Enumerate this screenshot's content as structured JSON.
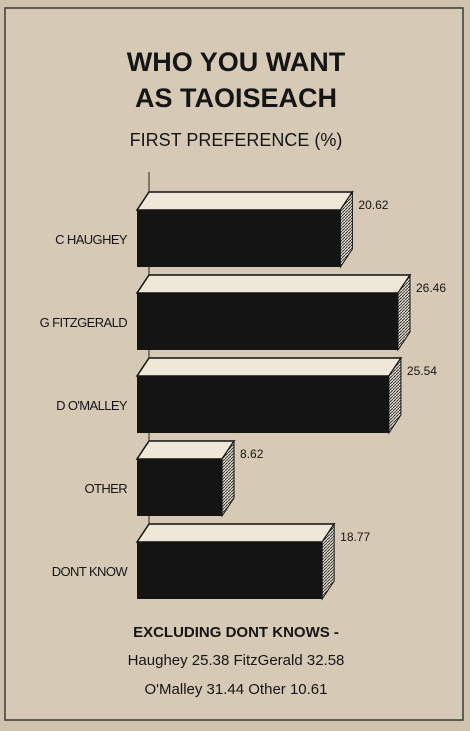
{
  "chart_data": {
    "type": "bar",
    "orientation": "horizontal",
    "title": [
      "WHO YOU WANT",
      "AS TAOISEACH"
    ],
    "subtitle": "FIRST PREFERENCE (%)",
    "categories": [
      "C HAUGHEY",
      "G FITZGERALD",
      "D O'MALLEY",
      "OTHER",
      "DONT KNOW"
    ],
    "values": [
      20.62,
      26.46,
      25.54,
      8.62,
      18.77
    ],
    "color": "#141414",
    "annotations": [
      "EXCLUDING DONT KNOWS -",
      "Haughey 25.38  FitzGerald 32.58",
      "O'Malley 31.44  Other 10.61"
    ]
  }
}
